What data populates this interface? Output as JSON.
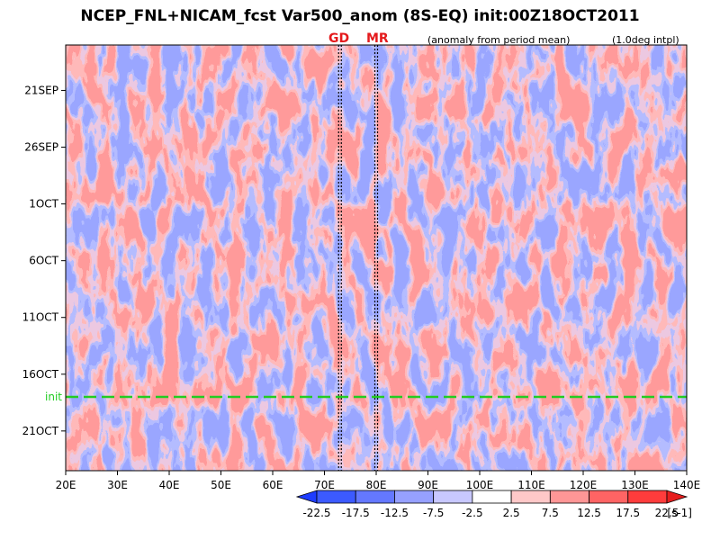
{
  "chart_data": {
    "type": "heatmap",
    "title": "NCEP_FNL+NICAM_fcst Var500_anom (8S-EQ) init:00Z18OCT2011",
    "subtitle_left": "(anomaly from period mean)",
    "subtitle_right": "(1.0deg intpl)",
    "x_ticks": [
      "20E",
      "30E",
      "40E",
      "50E",
      "60E",
      "70E",
      "80E",
      "90E",
      "100E",
      "110E",
      "120E",
      "130E",
      "140E"
    ],
    "x_tick_values": [
      20,
      30,
      40,
      50,
      60,
      70,
      80,
      90,
      100,
      110,
      120,
      130,
      140
    ],
    "xlim": [
      20,
      140
    ],
    "y_ticks": [
      "21SEP",
      "26SEP",
      "1OCT",
      "6OCT",
      "11OCT",
      "16OCT",
      "21OCT"
    ],
    "y_tick_days": [
      0,
      5,
      10,
      15,
      20,
      25,
      30
    ],
    "ylim_days": [
      -4,
      33.5
    ],
    "markers": [
      {
        "label": "GD",
        "lon": 73
      },
      {
        "label": "MR",
        "lon": 80
      }
    ],
    "init_line": {
      "label": "init",
      "day": 27.0,
      "color": "#22cc22"
    },
    "colorbar": {
      "levels": [
        "-22.5",
        "-17.5",
        "-12.5",
        "-7.5",
        "-2.5",
        "2.5",
        "7.5",
        "12.5",
        "17.5",
        "22.5"
      ],
      "level_values": [
        -22.5,
        -17.5,
        -12.5,
        -7.5,
        -2.5,
        2.5,
        7.5,
        12.5,
        17.5,
        22.5
      ],
      "colors": [
        "#1e3cff",
        "#3c5aff",
        "#6478ff",
        "#96a0ff",
        "#c8c8ff",
        "#ffffff",
        "#ffc8c8",
        "#ff9696",
        "#ff6464",
        "#ff3c3c",
        "#e61e1e"
      ],
      "unit": "[s-1]"
    }
  }
}
